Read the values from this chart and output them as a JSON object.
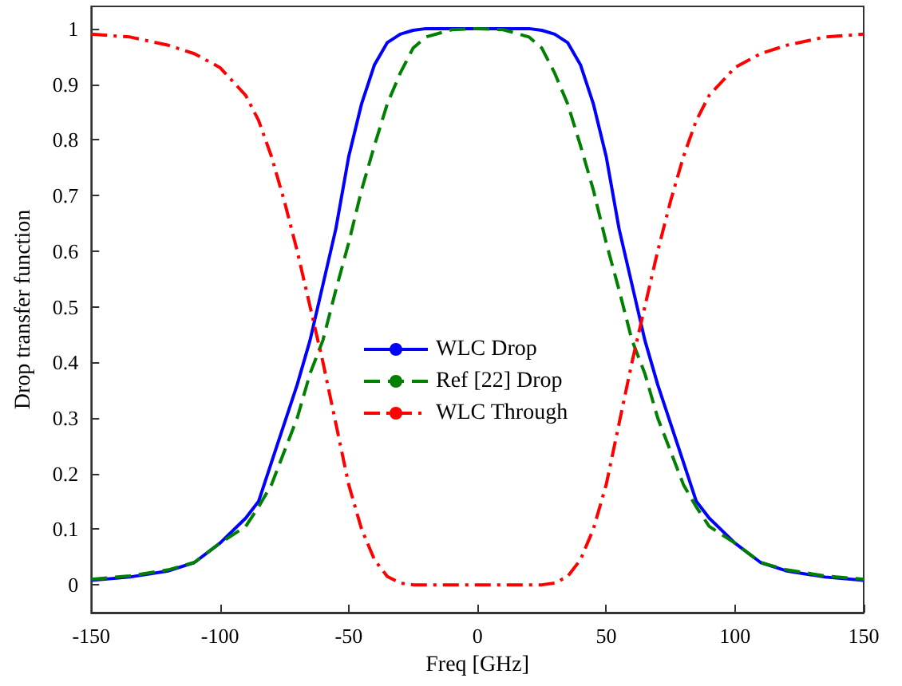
{
  "chart_data": {
    "type": "line",
    "xlabel": "Freq [GHz]",
    "ylabel": "Drop transfer function",
    "x": [
      -150,
      -135,
      -120,
      -110,
      -100,
      -90,
      -85,
      -80,
      -75,
      -70,
      -65,
      -60,
      -55,
      -50,
      -45,
      -40,
      -35,
      -30,
      -25,
      -20,
      -10,
      0,
      10,
      20,
      25,
      30,
      35,
      40,
      45,
      50,
      55,
      60,
      65,
      70,
      75,
      80,
      85,
      90,
      100,
      110,
      120,
      135,
      150
    ],
    "series": [
      {
        "name": "WLC Drop",
        "color": "#0000ff",
        "line_style": "solid",
        "values": [
          0.008,
          0.014,
          0.025,
          0.04,
          0.075,
          0.12,
          0.15,
          0.22,
          0.29,
          0.36,
          0.44,
          0.54,
          0.64,
          0.77,
          0.865,
          0.935,
          0.975,
          0.99,
          0.997,
          1,
          1,
          1,
          1,
          1,
          0.997,
          0.99,
          0.975,
          0.935,
          0.865,
          0.77,
          0.64,
          0.54,
          0.44,
          0.36,
          0.29,
          0.22,
          0.15,
          0.12,
          0.075,
          0.04,
          0.025,
          0.014,
          0.008
        ]
      },
      {
        "name": "Ref [22] Drop",
        "color": "#008000",
        "line_style": "dashed",
        "values": [
          0.01,
          0.016,
          0.027,
          0.04,
          0.075,
          0.105,
          0.14,
          0.18,
          0.24,
          0.3,
          0.38,
          0.44,
          0.53,
          0.615,
          0.71,
          0.79,
          0.865,
          0.92,
          0.965,
          0.985,
          0.998,
          1,
          0.998,
          0.985,
          0.965,
          0.92,
          0.865,
          0.79,
          0.71,
          0.615,
          0.53,
          0.44,
          0.38,
          0.3,
          0.24,
          0.18,
          0.14,
          0.105,
          0.075,
          0.04,
          0.027,
          0.016,
          0.01
        ]
      },
      {
        "name": "WLC Through",
        "color": "#ff0000",
        "line_style": "dashdot",
        "values": [
          0.99,
          0.985,
          0.97,
          0.955,
          0.93,
          0.88,
          0.835,
          0.77,
          0.69,
          0.6,
          0.5,
          0.4,
          0.29,
          0.18,
          0.1,
          0.045,
          0.015,
          0.003,
          0,
          0,
          0,
          0,
          0,
          0,
          0,
          0.003,
          0.015,
          0.045,
          0.1,
          0.18,
          0.29,
          0.4,
          0.5,
          0.6,
          0.69,
          0.77,
          0.835,
          0.88,
          0.93,
          0.955,
          0.97,
          0.985,
          0.99
        ]
      }
    ],
    "xlim": [
      -150,
      150
    ],
    "xticks": [
      -150,
      -100,
      -50,
      0,
      50,
      100,
      150
    ],
    "ylim": [
      -0.05,
      1.04
    ],
    "yticks": [
      0,
      0.1,
      0.2,
      0.3,
      0.4,
      0.5,
      0.6,
      0.7,
      0.8,
      0.9,
      1
    ],
    "grid": false,
    "legend": "center",
    "marker": "none"
  }
}
